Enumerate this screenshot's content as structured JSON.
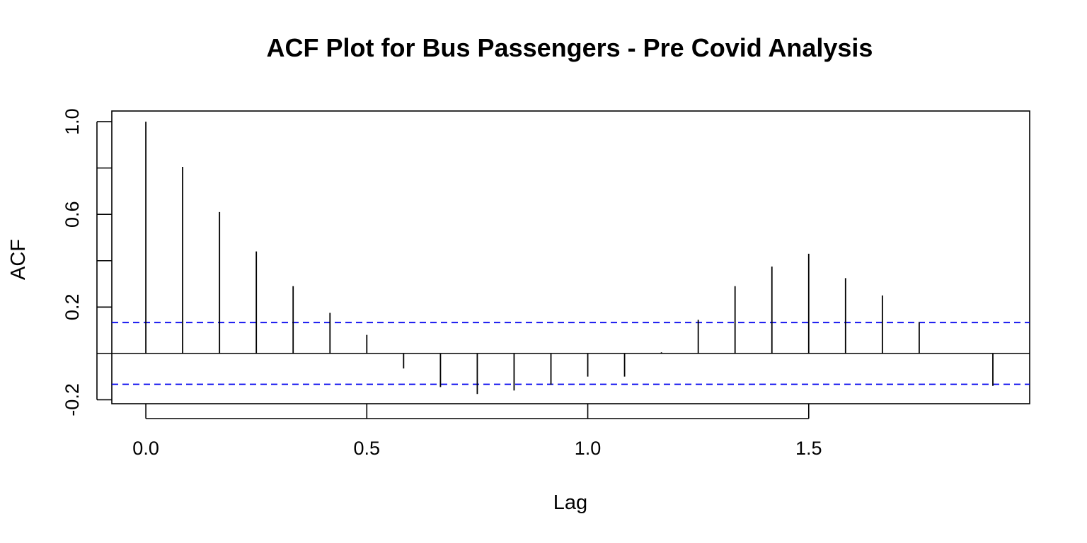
{
  "chart_data": {
    "type": "bar",
    "title": "ACF Plot for Bus Passengers - Pre Covid Analysis",
    "xlabel": "Lag",
    "ylabel": "ACF",
    "x_ticks": [
      0.0,
      0.5,
      1.0,
      1.5
    ],
    "x_tick_labels": [
      "0.0",
      "0.5",
      "1.0",
      "1.5"
    ],
    "y_ticks": [
      -0.2,
      0.0,
      0.2,
      0.4,
      0.6,
      0.8,
      1.0
    ],
    "y_tick_labels": [
      "-0.2",
      "",
      "0.2",
      "",
      "0.6",
      "",
      "1.0"
    ],
    "xlim": [
      -0.077,
      2.0
    ],
    "ylim": [
      -0.217,
      1.046
    ],
    "lags": [
      0.0,
      0.0833,
      0.1667,
      0.25,
      0.3333,
      0.4167,
      0.5,
      0.5833,
      0.6667,
      0.75,
      0.8333,
      0.9167,
      1.0,
      1.0833,
      1.1667,
      1.25,
      1.3333,
      1.4167,
      1.5,
      1.5833,
      1.6667,
      1.75,
      1.8333,
      1.9167
    ],
    "values": [
      1.0,
      0.805,
      0.61,
      0.44,
      0.29,
      0.175,
      0.08,
      -0.065,
      -0.145,
      -0.175,
      -0.16,
      -0.135,
      -0.1,
      -0.1,
      0.005,
      0.145,
      0.29,
      0.375,
      0.43,
      0.325,
      0.25,
      0.135,
      0.0,
      -0.14
    ],
    "confidence_bound": 0.133,
    "confidence_color": "#0000ee",
    "line_color": "#000000",
    "grid": false,
    "legend": "none"
  }
}
